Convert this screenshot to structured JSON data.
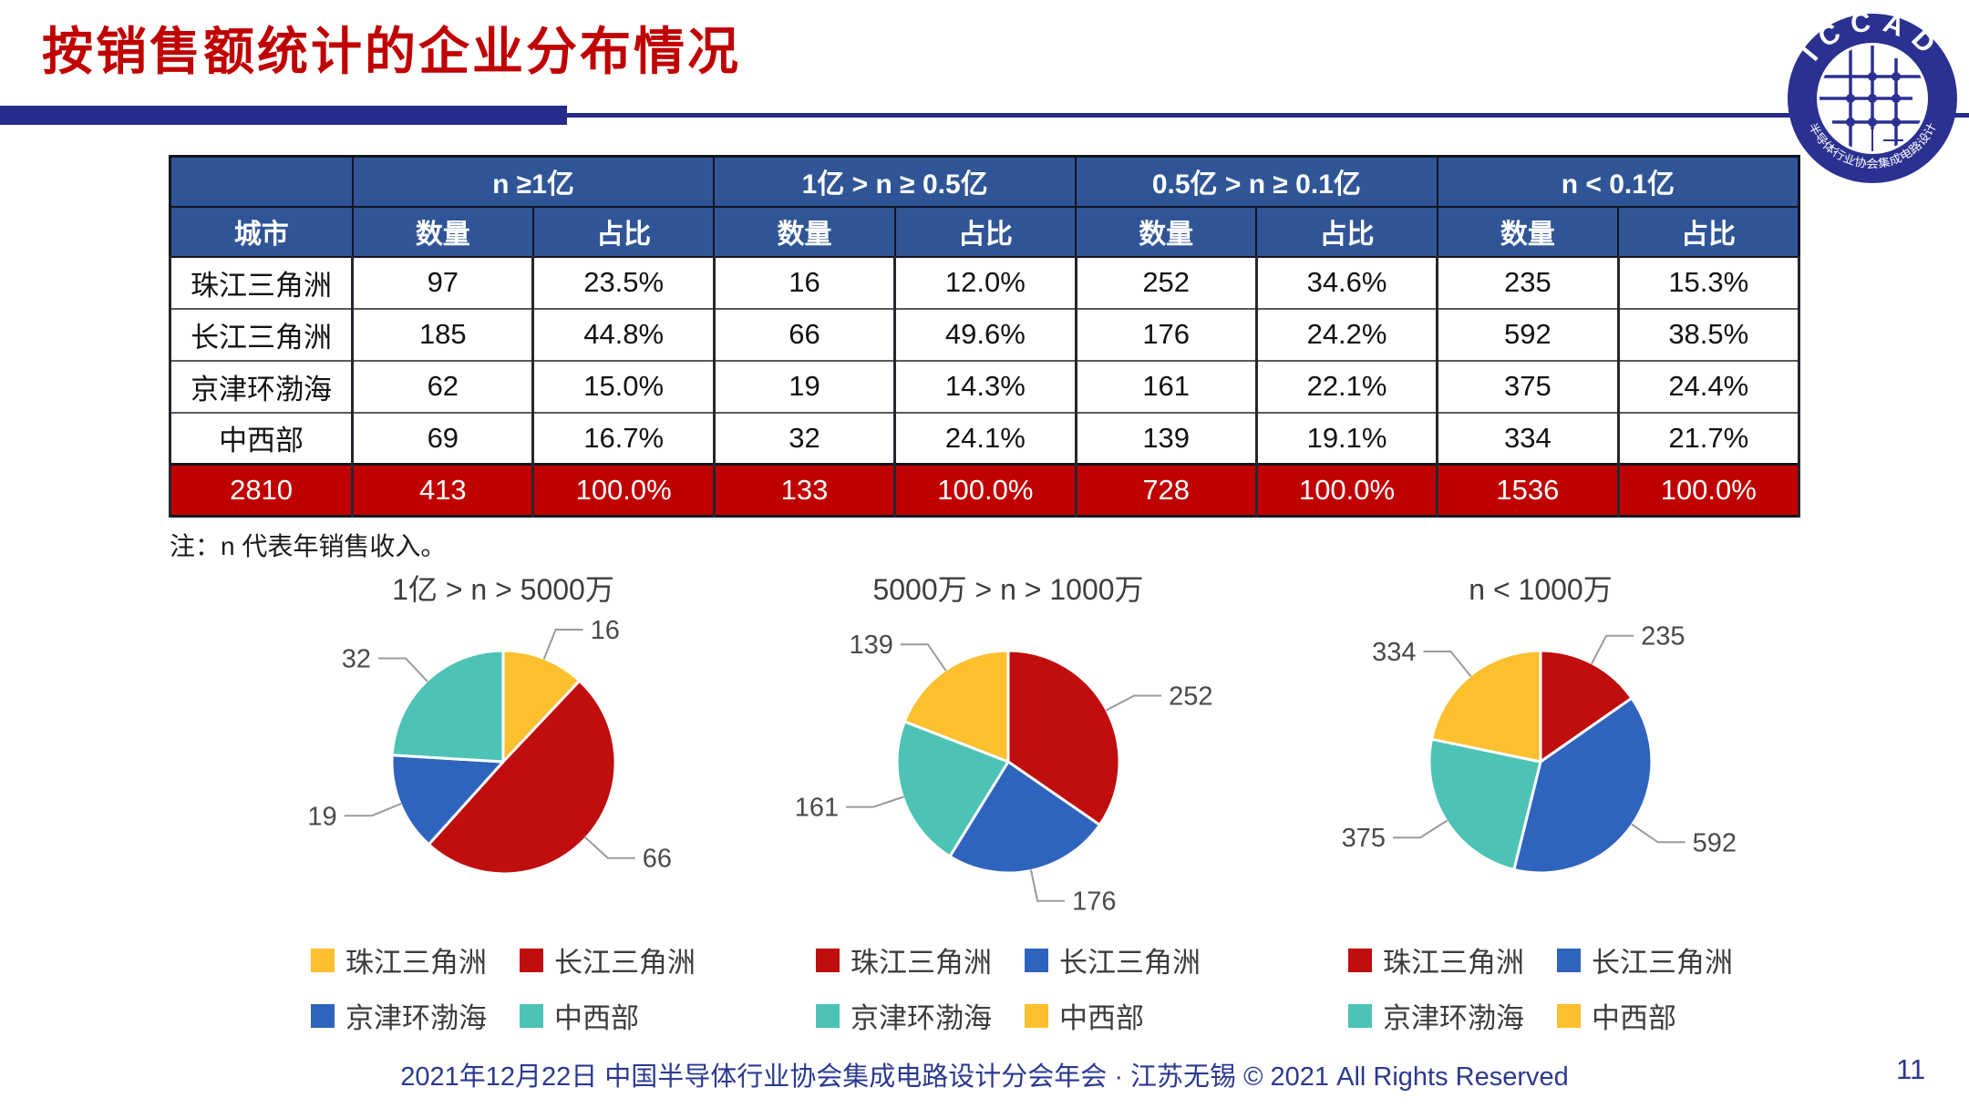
{
  "slide": {
    "title": "按销售额统计的企业分布情况",
    "note": "注：n 代表年销售收入。",
    "footer": "2021年12月22日 中国半导体行业协会集成电路设计分会年会 · 江苏无锡 © 2021 All Rights Reserved",
    "page_number": "11"
  },
  "logo": {
    "arc_top": "ICCAD",
    "arc_bottom": "中国半导体行业协会集成电路设计分会"
  },
  "colors": {
    "title_red": "#C00000",
    "header_navy": "#2F5597",
    "total_row_red": "#C00000",
    "bar_navy": "#252C8A",
    "footer_navy": "#2B3990",
    "pie_yellow": "#FCBF2D",
    "pie_red": "#C00D0D",
    "pie_blue": "#2F64BE",
    "pie_teal": "#4DC3B5"
  },
  "table": {
    "city_header": "城市",
    "group_headers": [
      "n ≥1亿",
      "1亿 > n ≥ 0.5亿",
      "0.5亿 > n ≥ 0.1亿",
      "n < 0.1亿"
    ],
    "sub_headers": [
      "数量",
      "占比"
    ],
    "rows": [
      {
        "city": "珠江三角洲",
        "values": [
          "97",
          "23.5%",
          "16",
          "12.0%",
          "252",
          "34.6%",
          "235",
          "15.3%"
        ]
      },
      {
        "city": "长江三角洲",
        "values": [
          "185",
          "44.8%",
          "66",
          "49.6%",
          "176",
          "24.2%",
          "592",
          "38.5%"
        ]
      },
      {
        "city": "京津环渤海",
        "values": [
          "62",
          "15.0%",
          "19",
          "14.3%",
          "161",
          "22.1%",
          "375",
          "24.4%"
        ]
      },
      {
        "city": "中西部",
        "values": [
          "69",
          "16.7%",
          "32",
          "24.1%",
          "139",
          "19.1%",
          "334",
          "21.7%"
        ]
      }
    ],
    "total_row": {
      "city": "2810",
      "values": [
        "413",
        "100.0%",
        "133",
        "100.0%",
        "728",
        "100.0%",
        "1536",
        "100.0%"
      ]
    }
  },
  "chart_data": [
    {
      "type": "pie",
      "title": "1亿 > n > 5000万",
      "labels": [
        "珠江三角洲",
        "长江三角洲",
        "京津环渤海",
        "中西部"
      ],
      "values": [
        16,
        66,
        19,
        32
      ],
      "colors": [
        "#FCBF2D",
        "#C00D0D",
        "#2F64BE",
        "#4DC3B5"
      ],
      "start_angle_deg": -90,
      "direction": "clockwise",
      "data_labels": "outside",
      "legend_position": "bottom"
    },
    {
      "type": "pie",
      "title": "5000万 > n > 1000万",
      "labels": [
        "珠江三角洲",
        "长江三角洲",
        "京津环渤海",
        "中西部"
      ],
      "values": [
        252,
        176,
        161,
        139
      ],
      "colors": [
        "#C00D0D",
        "#2F64BE",
        "#4DC3B5",
        "#FCBF2D"
      ],
      "start_angle_deg": -90,
      "direction": "clockwise",
      "data_labels": "outside",
      "legend_position": "bottom"
    },
    {
      "type": "pie",
      "title": "n < 1000万",
      "labels": [
        "珠江三角洲",
        "长江三角洲",
        "京津环渤海",
        "中西部"
      ],
      "values": [
        235,
        592,
        375,
        334
      ],
      "colors": [
        "#C00D0D",
        "#2F64BE",
        "#4DC3B5",
        "#FCBF2D"
      ],
      "start_angle_deg": -90,
      "direction": "clockwise",
      "data_labels": "outside",
      "legend_position": "bottom"
    }
  ]
}
